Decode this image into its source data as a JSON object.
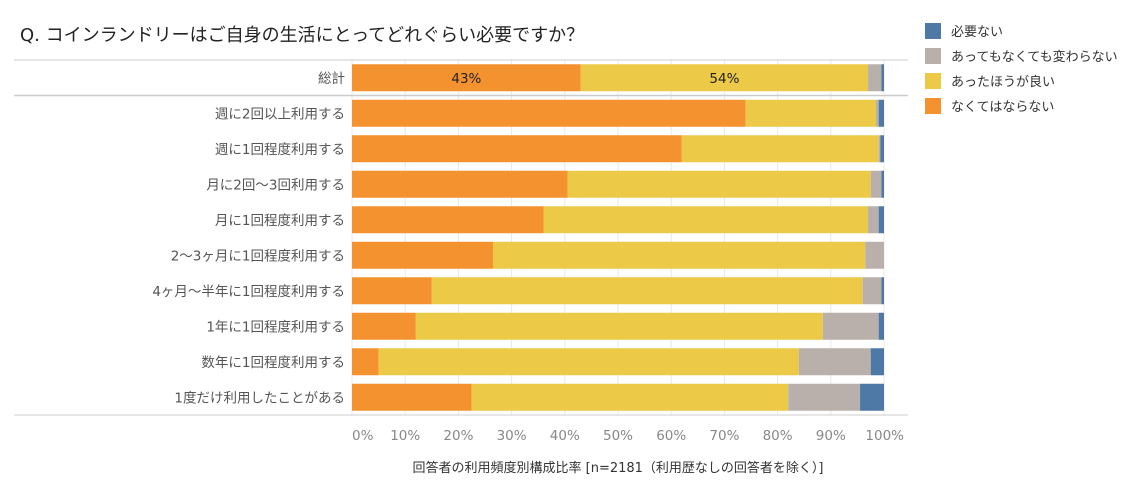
{
  "title": "Q. コインランドリーはご自身の生活にとってどれぐらい必要ですか？",
  "colors": {
    "series": [
      "#f4922f",
      "#ecc946",
      "#bab0ab",
      "#4e79a7"
    ],
    "separator": "#cccccc",
    "grid": "#e8e8e8",
    "category_text": "#555555",
    "tick_text": "#888888",
    "data_label_text": "#222222"
  },
  "chart_data": {
    "type": "bar",
    "orientation": "horizontal",
    "stacked": true,
    "title": "Q. コインランドリーはご自身の生活にとってどれぐらい必要ですか？",
    "categories": [
      "総計",
      "週に2回以上利用する",
      "週に1回程度利用する",
      "月に2回～3回利用する",
      "月に1回程度利用する",
      "2～3ヶ月に1回程度利用する",
      "4ヶ月～半年に1回程度利用する",
      "1年に1回程度利用する",
      "数年に1回程度利用する",
      "1度だけ利用したことがある"
    ],
    "series": [
      {
        "name": "なくてはならない",
        "values": [
          43,
          74,
          62,
          40.5,
          36,
          26.5,
          15,
          12,
          5,
          22.5
        ]
      },
      {
        "name": "あったほうが良い",
        "values": [
          54,
          24.5,
          37,
          57,
          61,
          70,
          81,
          76.5,
          79,
          59.5
        ]
      },
      {
        "name": "あってもなくても変わらない",
        "values": [
          2.5,
          0.5,
          0.3,
          2,
          2,
          3.5,
          3.5,
          10.5,
          13.5,
          13.5
        ]
      },
      {
        "name": "必要ない",
        "values": [
          0.5,
          1,
          0.7,
          0.5,
          1,
          0,
          0.5,
          1,
          2.5,
          4.5
        ]
      }
    ],
    "data_labels": [
      {
        "category": "総計",
        "series": "なくてはならない",
        "text": "43%"
      },
      {
        "category": "総計",
        "series": "あったほうが良い",
        "text": "54%"
      }
    ],
    "xlim": [
      0,
      100
    ],
    "xticks": [
      "0%",
      "10%",
      "20%",
      "30%",
      "40%",
      "50%",
      "60%",
      "70%",
      "80%",
      "90%",
      "100%"
    ],
    "xlabel": "回答者の利用頻度別構成比率 [n=2181（利用歴なしの回答者を除く）]",
    "ylabel": "",
    "legend": {
      "position": "top-right",
      "order": [
        "必要ない",
        "あってもなくても変わらない",
        "あったほうが良い",
        "なくてはならない"
      ]
    },
    "grid": true
  }
}
